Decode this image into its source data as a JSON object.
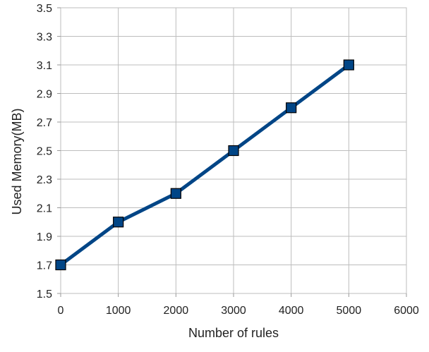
{
  "chart_data": {
    "type": "line",
    "title": "",
    "xlabel": "Number of rules",
    "ylabel": "Used Memory(MB)",
    "xlim": [
      0,
      6000
    ],
    "ylim": [
      1.5,
      3.5
    ],
    "x_ticks": [
      "0",
      "1000",
      "2000",
      "3000",
      "4000",
      "5000",
      "6000"
    ],
    "y_ticks": [
      "1.5",
      "1.7",
      "1.9",
      "2.1",
      "2.3",
      "2.5",
      "2.7",
      "2.9",
      "3.1",
      "3.3",
      "3.5"
    ],
    "grid": true,
    "legend": "none",
    "marker": "square",
    "series": [
      {
        "x": [
          0,
          1000,
          2000,
          3000,
          4000,
          5000
        ],
        "y": [
          1.7,
          2.0,
          2.2,
          2.5,
          2.8,
          3.1
        ],
        "color": "#004586"
      }
    ]
  }
}
